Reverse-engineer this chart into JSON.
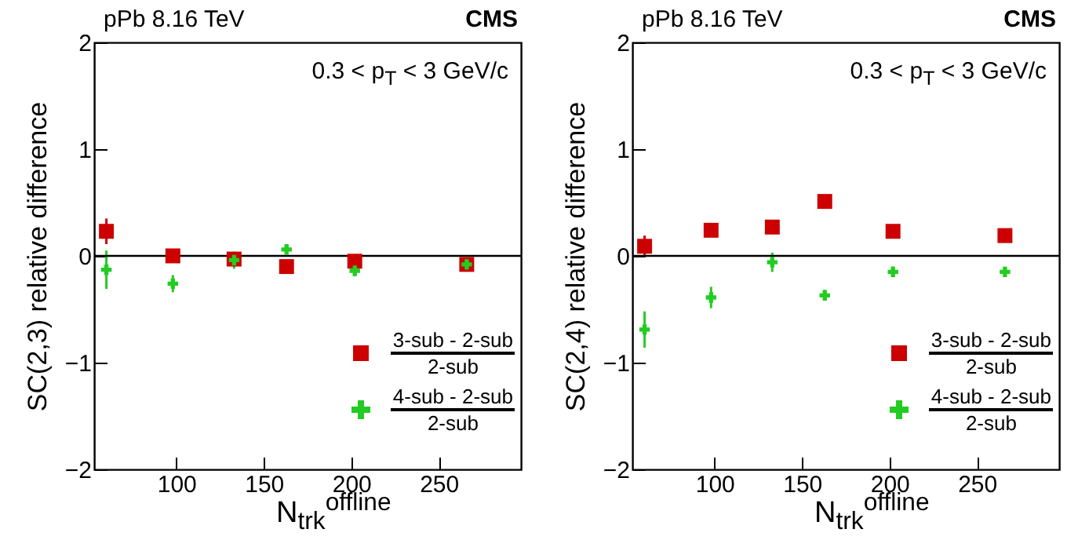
{
  "chart_data": [
    {
      "type": "scatter",
      "title": "pPb 8.16 TeV",
      "xlabel": "N$_{trk}$$^{offline}$",
      "ylabel": "SC(2,3) relative difference",
      "annotations": [
        "CMS",
        "0.3 < p$_{T}$ < 3 GeV/c"
      ],
      "x": [
        60,
        98,
        133,
        163,
        202,
        266
      ],
      "xlim": [
        53,
        297
      ],
      "ylim": [
        -2,
        2
      ],
      "xticks": [
        100,
        150,
        200,
        250
      ],
      "yticks": [
        -2,
        -1,
        0,
        1,
        2
      ],
      "grid": false,
      "legend": "bottom right",
      "ref_lines": [
        {
          "axis": "y",
          "value": 0,
          "color": "#000000"
        }
      ],
      "series": [
        {
          "name": "3-sub - 2-sub\n2-sub",
          "color": "#cc0000",
          "marker": "square",
          "values": [
            0.23,
            0.0,
            -0.03,
            -0.1,
            -0.05,
            -0.08
          ],
          "errors": [
            0.12,
            0.04,
            0.04,
            0.03,
            0.03,
            0.03
          ]
        },
        {
          "name": "4-sub - 2-sub\n2-sub",
          "color": "#22cc22",
          "marker": "cross",
          "values": [
            -0.13,
            -0.26,
            -0.04,
            0.06,
            -0.14,
            -0.08
          ],
          "errors": [
            0.18,
            0.08,
            0.08,
            0.05,
            0.05,
            0.04
          ]
        }
      ]
    },
    {
      "type": "scatter",
      "title": "pPb 8.16 TeV",
      "xlabel": "N$_{trk}$$^{offline}$",
      "ylabel": "SC(2,4) relative difference",
      "annotations": [
        "CMS",
        "0.3 < p$_{T}$ < 3 GeV/c"
      ],
      "x": [
        60,
        98,
        133,
        163,
        202,
        266
      ],
      "xlim": [
        53,
        297
      ],
      "ylim": [
        -2,
        2
      ],
      "xticks": [
        100,
        150,
        200,
        250
      ],
      "yticks": [
        -2,
        -1,
        0,
        1,
        2
      ],
      "grid": false,
      "legend": "bottom right",
      "ref_lines": [
        {
          "axis": "y",
          "value": 0,
          "color": "#000000"
        }
      ],
      "series": [
        {
          "name": "3-sub - 2-sub\n2-sub",
          "color": "#cc0000",
          "marker": "square",
          "values": [
            0.09,
            0.24,
            0.27,
            0.51,
            0.23,
            0.19
          ],
          "errors": [
            0.1,
            0.06,
            0.05,
            0.03,
            0.03,
            0.03
          ]
        },
        {
          "name": "4-sub - 2-sub\n2-sub",
          "color": "#22cc22",
          "marker": "cross",
          "values": [
            -0.69,
            -0.39,
            -0.06,
            -0.37,
            -0.15,
            -0.15
          ],
          "errors": [
            0.17,
            0.1,
            0.09,
            0.05,
            0.05,
            0.04
          ]
        }
      ]
    }
  ]
}
